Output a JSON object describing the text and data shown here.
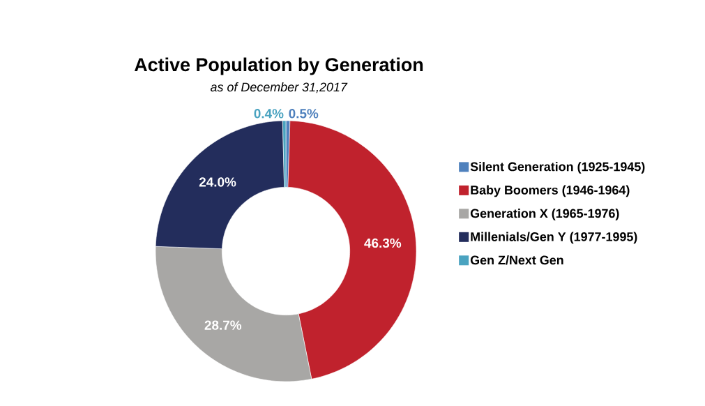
{
  "chart_data": {
    "type": "donut",
    "title": "Active Population by Generation",
    "subtitle": "*as of December 31,2017*",
    "categories": [
      "Silent Generation (1925-1945)",
      "Baby Boomers (1946-1964)",
      "Generation X (1965-1976)",
      "Millenials/Gen Y (1977-1995)",
      "Gen Z/Next Gen"
    ],
    "values": [
      0.5,
      46.3,
      28.7,
      24.0,
      0.4
    ],
    "value_labels": [
      "0.5%",
      "46.3%",
      "28.7%",
      "24.0%",
      "0.4%"
    ],
    "colors": [
      "#4f81bd",
      "#c0222d",
      "#a8a7a5",
      "#232d5c",
      "#4aa3c0"
    ],
    "legend": "right"
  }
}
